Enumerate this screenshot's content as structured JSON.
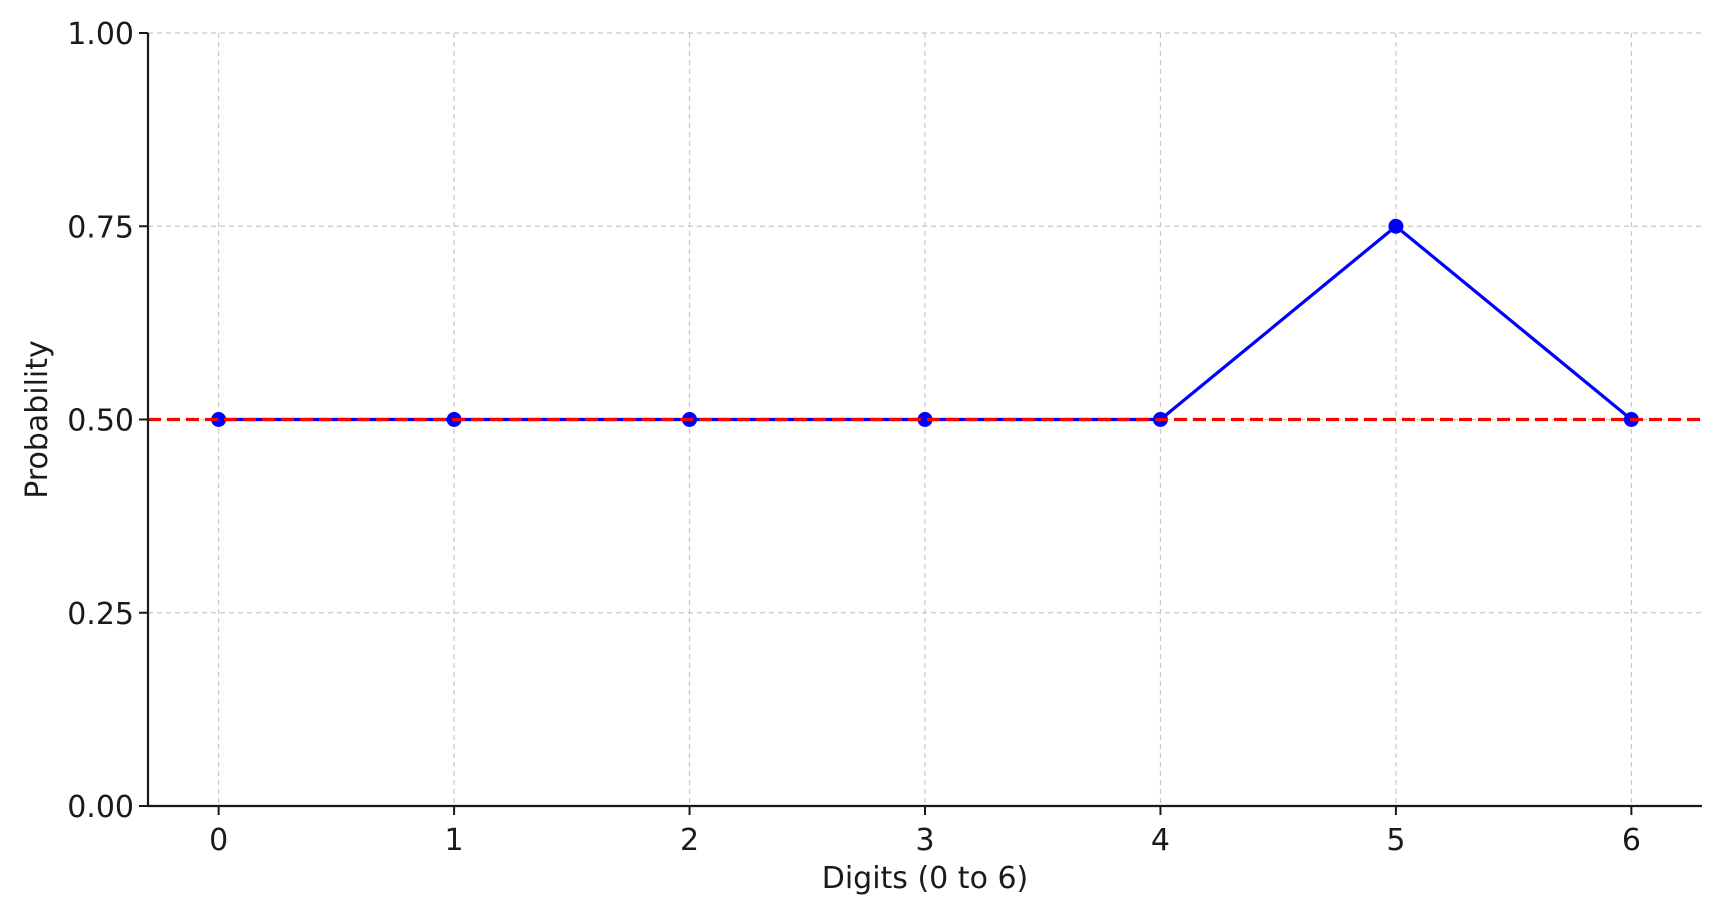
{
  "chart_data": {
    "type": "line",
    "title": "",
    "xlabel": "Digits (0 to 6)",
    "ylabel": "Probability",
    "x": [
      0,
      1,
      2,
      3,
      4,
      5,
      6
    ],
    "xticks": [
      "0",
      "1",
      "2",
      "3",
      "4",
      "5",
      "6"
    ],
    "yticks": [
      "0.00",
      "0.25",
      "0.50",
      "0.75",
      "1.00"
    ],
    "ylim": [
      0,
      1
    ],
    "xlim": [
      -0.3,
      6.3
    ],
    "grid": true,
    "series": [
      {
        "values": [
          0.5,
          0.5,
          0.5,
          0.5,
          0.5,
          0.75,
          0.5
        ],
        "color": "#0000ff",
        "marker": "circle",
        "line_style": "solid"
      }
    ],
    "reference_lines": [
      {
        "orientation": "horizontal",
        "value": 0.5,
        "color": "#ff0000",
        "line_style": "dashed"
      }
    ]
  }
}
